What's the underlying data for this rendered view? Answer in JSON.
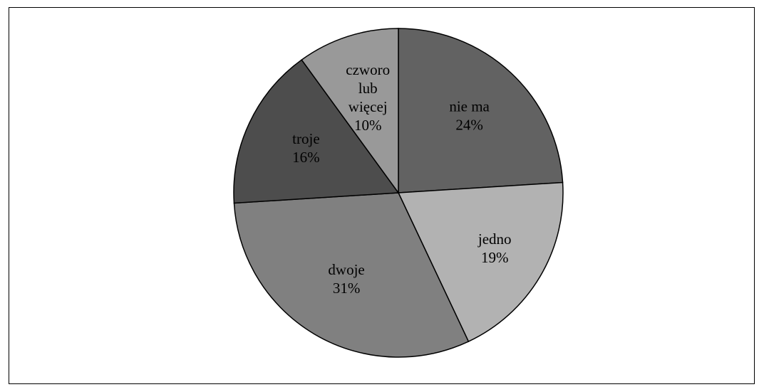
{
  "chart_data": {
    "type": "pie",
    "slices": [
      {
        "label_lines": [
          "nie ma"
        ],
        "percent_label": "24%",
        "value": 24,
        "color": "#626262"
      },
      {
        "label_lines": [
          "jedno"
        ],
        "percent_label": "19%",
        "value": 19,
        "color": "#b2b2b2"
      },
      {
        "label_lines": [
          "dwoje"
        ],
        "percent_label": "31%",
        "value": 31,
        "color": "#808080"
      },
      {
        "label_lines": [
          "troje"
        ],
        "percent_label": "16%",
        "value": 16,
        "color": "#4d4d4d"
      },
      {
        "label_lines": [
          "czworo",
          "lub",
          "więcej"
        ],
        "percent_label": "10%",
        "value": 10,
        "color": "#999999"
      }
    ],
    "start_angle_deg": 0,
    "direction": "clockwise",
    "legend": "none",
    "title": ""
  }
}
